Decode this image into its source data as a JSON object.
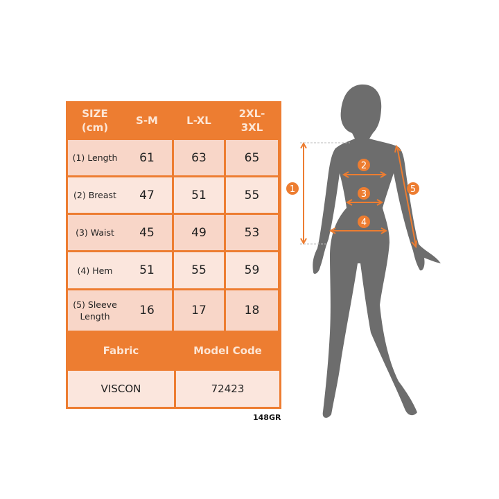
{
  "colors": {
    "accent": "#ed7d31",
    "cell_dark": "#f8d6c8",
    "cell_light": "#fbe6dd",
    "silhouette": "#6d6d6d"
  },
  "table": {
    "header": [
      "SIZE\n(cm)",
      "S-M",
      "L-XL",
      "2XL-\n3XL"
    ],
    "rows": [
      {
        "label": "(1) Length",
        "values": [
          "61",
          "63",
          "65"
        ]
      },
      {
        "label": "(2) Breast",
        "values": [
          "47",
          "51",
          "55"
        ]
      },
      {
        "label": "(3) Waist",
        "values": [
          "45",
          "49",
          "53"
        ]
      },
      {
        "label": "(4) Hem",
        "values": [
          "51",
          "55",
          "59"
        ]
      },
      {
        "label": "(5) Sleeve\nLength",
        "values": [
          "16",
          "17",
          "18"
        ]
      }
    ],
    "footer_headers": [
      "Fabric",
      "Model Code"
    ],
    "footer_values": [
      "VISCON",
      "72423"
    ]
  },
  "product_code": "148GR",
  "figure": {
    "markers": [
      "1",
      "2",
      "3",
      "4",
      "5"
    ]
  }
}
